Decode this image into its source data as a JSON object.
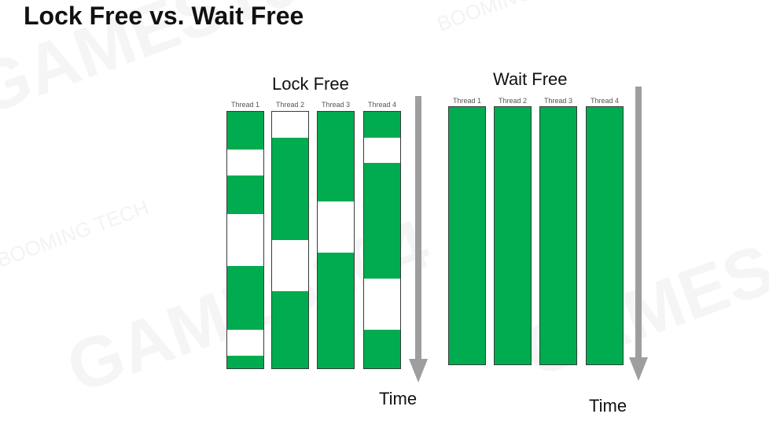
{
  "title": "Lock Free vs. Wait Free",
  "watermark": {
    "lines": [
      "GAMES104",
      "BOOMING TECH"
    ]
  },
  "panels": {
    "lock_free": {
      "title": "Lock Free",
      "time_label": "Time",
      "threads": [
        {
          "label": "Thread 1",
          "segments": [
            [
              0.0,
              0.148
            ],
            [
              0.249,
              0.398
            ],
            [
              0.6,
              0.85
            ],
            [
              0.952,
              1.0
            ]
          ]
        },
        {
          "label": "Thread 2",
          "segments": [
            [
              0.1,
              0.5
            ],
            [
              0.7,
              1.0
            ]
          ]
        },
        {
          "label": "Thread 3",
          "segments": [
            [
              0.0,
              0.35
            ],
            [
              0.55,
              1.0
            ]
          ]
        },
        {
          "label": "Thread 4",
          "segments": [
            [
              0.0,
              0.1
            ],
            [
              0.2,
              0.65
            ],
            [
              0.85,
              1.0
            ]
          ]
        }
      ]
    },
    "wait_free": {
      "title": "Wait Free",
      "time_label": "Time",
      "threads": [
        {
          "label": "Thread 1",
          "segments": [
            [
              0.0,
              1.0
            ]
          ]
        },
        {
          "label": "Thread 2",
          "segments": [
            [
              0.0,
              1.0
            ]
          ]
        },
        {
          "label": "Thread 3",
          "segments": [
            [
              0.0,
              1.0
            ]
          ]
        },
        {
          "label": "Thread 4",
          "segments": [
            [
              0.0,
              1.0
            ]
          ]
        }
      ]
    }
  },
  "colors": {
    "active": "#00ac4f",
    "idle": "#ffffff",
    "border": "#3a3a3a",
    "arrow": "#9e9e9e"
  }
}
